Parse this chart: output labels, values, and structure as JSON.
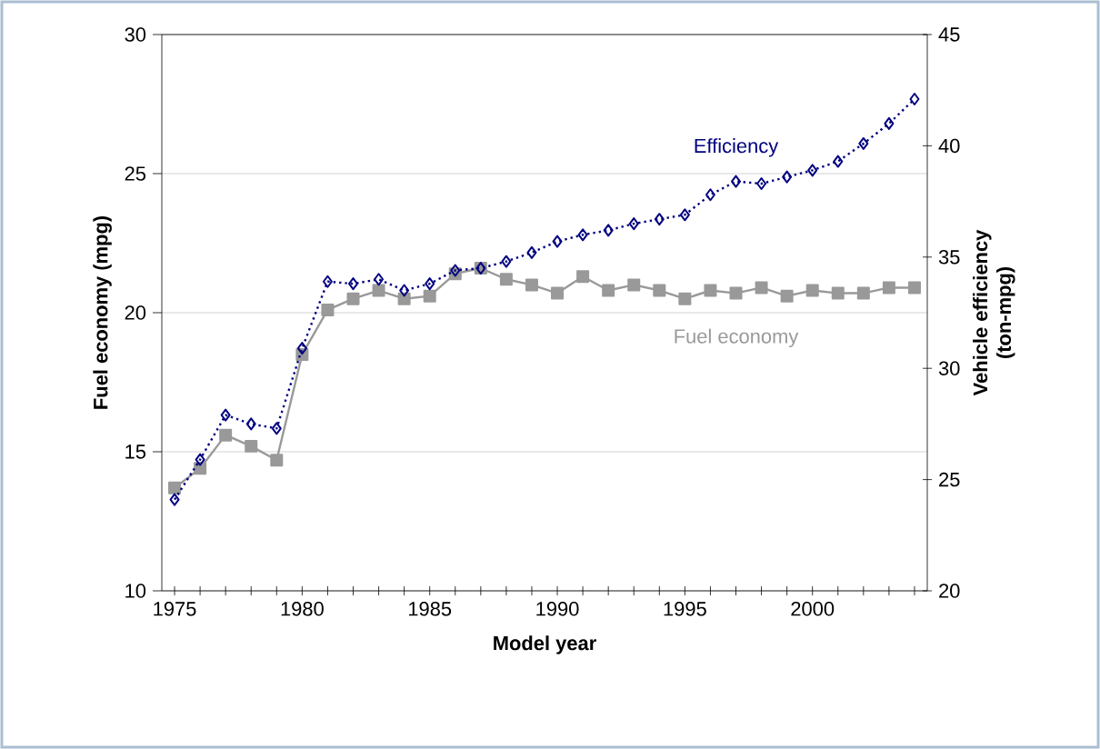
{
  "chart_data": {
    "type": "line",
    "xlabel": "Model year",
    "ylabel": "Fuel economy (mpg)",
    "y2label": "Vehicle efficiency\n(ton-mpg)",
    "x": [
      1975,
      1976,
      1977,
      1978,
      1979,
      1980,
      1981,
      1982,
      1983,
      1984,
      1985,
      1986,
      1987,
      1988,
      1989,
      1990,
      1991,
      1992,
      1993,
      1994,
      1995,
      1996,
      1997,
      1998,
      1999,
      2000,
      2001,
      2002,
      2003,
      2004
    ],
    "series": [
      {
        "name": "Fuel economy",
        "color": "#999999",
        "marker": "square",
        "line_style": "solid",
        "values": [
          13.7,
          14.4,
          15.6,
          15.2,
          14.7,
          18.5,
          20.1,
          20.5,
          20.8,
          20.5,
          20.6,
          21.4,
          21.6,
          21.2,
          21.0,
          20.7,
          21.3,
          20.8,
          21.0,
          20.8,
          20.5,
          20.8,
          20.7,
          20.9,
          20.6,
          20.8,
          20.7,
          20.7,
          20.9,
          20.9
        ]
      },
      {
        "name": "Efficiency",
        "color": "#000080",
        "marker": "diamond",
        "line_style": "dotted",
        "axis": "y2",
        "values": [
          24.1,
          25.9,
          27.9,
          27.5,
          27.3,
          30.9,
          33.9,
          33.8,
          34.0,
          33.5,
          33.8,
          34.4,
          34.5,
          34.8,
          35.2,
          35.7,
          36.0,
          36.2,
          36.5,
          36.7,
          36.9,
          37.8,
          38.4,
          38.3,
          38.6,
          38.9,
          39.3,
          40.1,
          41.0,
          42.1
        ]
      }
    ],
    "xlim": [
      1974.5,
      2004.5
    ],
    "xticks": [
      1975,
      {
        "value": 1976,
        "label": null
      },
      {
        "value": 1977,
        "label": null
      },
      {
        "value": 1978,
        "label": null
      },
      {
        "value": 1979,
        "label": null
      },
      1980,
      {
        "value": 1981,
        "label": null
      },
      {
        "value": 1982,
        "label": null
      },
      {
        "value": 1983,
        "label": null
      },
      {
        "value": 1984,
        "label": null
      },
      1985,
      {
        "value": 1986,
        "label": null
      },
      {
        "value": 1987,
        "label": null
      },
      {
        "value": 1988,
        "label": null
      },
      {
        "value": 1989,
        "label": null
      },
      1990,
      {
        "value": 1991,
        "label": null
      },
      {
        "value": 1992,
        "label": null
      },
      {
        "value": 1993,
        "label": null
      },
      {
        "value": 1994,
        "label": null
      },
      1995,
      {
        "value": 1996,
        "label": null
      },
      {
        "value": 1997,
        "label": null
      },
      {
        "value": 1998,
        "label": null
      },
      {
        "value": 1999,
        "label": null
      },
      2000,
      {
        "value": 2001,
        "label": null
      },
      {
        "value": 2002,
        "label": null
      },
      {
        "value": 2003,
        "label": null
      },
      {
        "value": 2004,
        "label": null
      }
    ],
    "ylim": [
      10,
      30
    ],
    "yticks": [
      10,
      15,
      20,
      25,
      30
    ],
    "y2lim": [
      20,
      45
    ],
    "y2ticks": [
      20,
      25,
      30,
      35,
      40,
      45
    ],
    "grid": "y"
  }
}
